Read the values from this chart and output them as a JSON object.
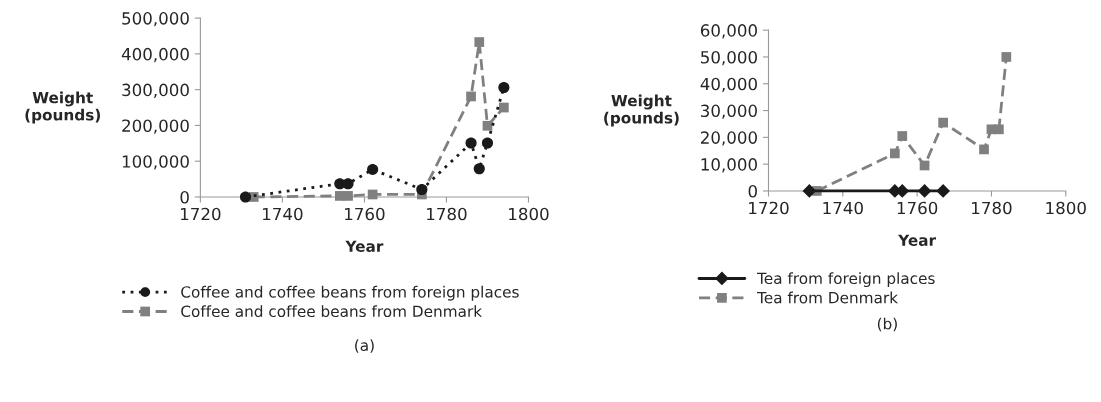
{
  "chart_data": [
    {
      "type": "line",
      "xlabel": "Year",
      "ylabel": "Weight\n(pounds)",
      "xlim": [
        1720,
        1800
      ],
      "xticks": [
        1720,
        1740,
        1760,
        1780,
        1800
      ],
      "ylim": [
        0,
        500000
      ],
      "yticks": [
        {
          "value": 0,
          "label": "0"
        },
        {
          "value": 100000,
          "label": "100,000"
        },
        {
          "value": 200000,
          "label": "200,000"
        },
        {
          "value": 300000,
          "label": "300,000"
        },
        {
          "value": 400000,
          "label": "400,000"
        },
        {
          "value": 500000,
          "label": "500,000"
        }
      ],
      "grid": false,
      "legend": "bottom",
      "annotations": [
        "(a)"
      ],
      "series": [
        {
          "name": "Coffee and coffee beans from foreign places",
          "color": "#1a1a1a",
          "marker": "circle",
          "line_style": "dotted",
          "x": [
            1731,
            1754,
            1756,
            1762,
            1774,
            1786,
            1788,
            1790,
            1794
          ],
          "values": [
            0,
            37000,
            37000,
            77000,
            21000,
            151000,
            79000,
            151000,
            306000
          ]
        },
        {
          "name": "Coffee and coffee beans from Denmark",
          "color": "#808080",
          "marker": "square",
          "line_style": "dashed",
          "x": [
            1733,
            1754,
            1756,
            1762,
            1774,
            1786,
            1788,
            1790,
            1794
          ],
          "values": [
            0,
            3000,
            3000,
            7000,
            7000,
            281000,
            433000,
            199000,
            250000
          ]
        }
      ]
    },
    {
      "type": "line",
      "xlabel": "Year",
      "ylabel": "Weight\n(pounds)",
      "xlim": [
        1720,
        1800
      ],
      "xticks": [
        1720,
        1740,
        1760,
        1780,
        1800
      ],
      "ylim": [
        0,
        60000
      ],
      "yticks": [
        {
          "value": 0,
          "label": "0"
        },
        {
          "value": 10000,
          "label": "10,000"
        },
        {
          "value": 20000,
          "label": "20,000"
        },
        {
          "value": 30000,
          "label": "30,000"
        },
        {
          "value": 40000,
          "label": "40,000"
        },
        {
          "value": 50000,
          "label": "50,000"
        },
        {
          "value": 60000,
          "label": "60,000"
        }
      ],
      "grid": false,
      "legend": "bottom",
      "annotations": [
        "(b)"
      ],
      "series": [
        {
          "name": "Tea from foreign places",
          "color": "#1a1a1a",
          "marker": "diamond",
          "line_style": "solid",
          "x": [
            1731,
            1754,
            1756,
            1762,
            1767
          ],
          "values": [
            0,
            0,
            0,
            0,
            0
          ]
        },
        {
          "name": "Tea from Denmark",
          "color": "#808080",
          "marker": "square",
          "line_style": "dashed",
          "x": [
            1733,
            1754,
            1756,
            1762,
            1767,
            1778,
            1780,
            1782,
            1784
          ],
          "values": [
            0,
            14000,
            20500,
            9500,
            25500,
            15500,
            23000,
            23000,
            50000
          ]
        }
      ]
    }
  ]
}
